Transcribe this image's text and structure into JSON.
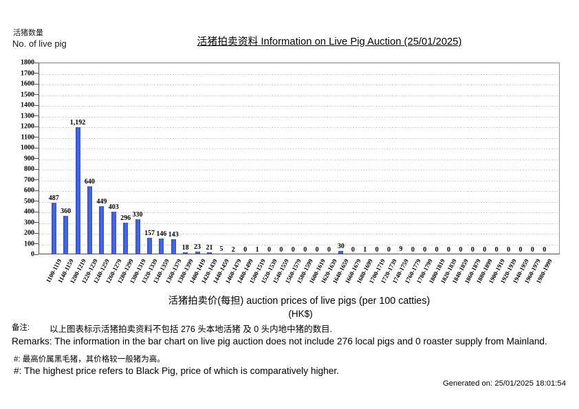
{
  "header": {
    "y_axis_label_zh": "活猪数量",
    "y_axis_label_en": "No. of live pig",
    "title": "活猪拍卖资料 Information on Live Pig Auction (25/01/2025)"
  },
  "chart_data": {
    "type": "bar",
    "title": "活猪拍卖资料 Information on Live Pig Auction (25/01/2025)",
    "ylabel": "活猪数量 No. of live pig",
    "xlabel": "活猪拍卖价(每担) auction prices of live pigs (per 100 catties) (HK$)",
    "ylim": [
      0,
      1800
    ],
    "ytick_step": 100,
    "grid": "horizontal-dashed",
    "legend_position": "none",
    "bar_color": "#3a5ce0",
    "categories": [
      "1100-1119",
      "1140-1159",
      "1200-1219",
      "1220-1239",
      "1240-1259",
      "1260-1279",
      "1280-1299",
      "1300-1319",
      "1320-1339",
      "1340-1359",
      "1360-1379",
      "1380-1399",
      "1400-1419",
      "1420-1439",
      "1440-1459",
      "1460-1479",
      "1480-1499",
      "1500-1519",
      "1520-1539",
      "1540-1559",
      "1560-1579",
      "1580-1599",
      "1600-1619",
      "1620-1639",
      "1640-1659",
      "1660-1679",
      "1680-1699",
      "1700-1719",
      "1720-1739",
      "1740-1759",
      "1760-1779",
      "1780-1799",
      "1800-1819",
      "1820-1839",
      "1840-1859",
      "1860-1879",
      "1880-1899",
      "1900-1919",
      "1920-1939",
      "1940-1959",
      "1960-1979",
      "1980-1999"
    ],
    "values": [
      487,
      360,
      1192,
      640,
      449,
      403,
      296,
      330,
      157,
      146,
      143,
      18,
      23,
      21,
      5,
      2,
      0,
      1,
      0,
      0,
      0,
      0,
      0,
      0,
      30,
      0,
      1,
      0,
      0,
      9,
      0,
      0,
      0,
      0,
      0,
      0,
      0,
      0,
      0,
      0,
      0,
      0
    ]
  },
  "x_axis": {
    "title": "活猪拍卖价(每担) auction prices of live pigs (per 100 catties)",
    "unit": "(HK$)"
  },
  "remarks": {
    "zh_label": "备注:",
    "zh_text": "以上图表标示活猪拍卖资料不包括 276 头本地活猪 及 0 头内地中猪的数目.",
    "en_text": "Remarks: The information in the bar chart on live pig auction does not include 276 local pigs and 0 roaster supply from Mainland.",
    "hash_zh": "#: 最高价属黑毛猪，其价格较一般猪为高。",
    "hash_en": "#: The highest price refers to Black Pig, price of which is comparatively higher."
  },
  "footer": {
    "generated_on": "Generated on: 25/01/2025 18:01:54"
  }
}
